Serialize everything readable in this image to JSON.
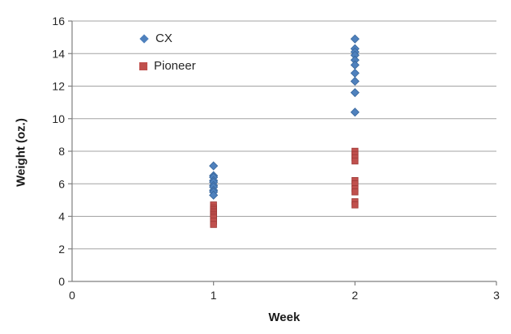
{
  "chart_data": {
    "type": "scatter",
    "title": "",
    "xlabel": "Week",
    "ylabel": "Weight (oz.)",
    "xlim": [
      0,
      3
    ],
    "ylim": [
      0,
      16
    ],
    "x_ticks": [
      0,
      1,
      2,
      3
    ],
    "y_ticks": [
      0,
      2,
      4,
      6,
      8,
      10,
      12,
      14,
      16
    ],
    "grid": "horizontal-lines-only",
    "legend_position": "inside-top-left",
    "legend": [
      {
        "label": "CX",
        "marker": "diamond"
      },
      {
        "label": "Pioneer",
        "marker": "square"
      }
    ],
    "series": [
      {
        "name": "CX",
        "marker": "diamond",
        "color": "#4F81BD",
        "edge_color": "#38669B",
        "points": [
          {
            "x": 1,
            "y": 7.1
          },
          {
            "x": 1,
            "y": 6.5
          },
          {
            "x": 1,
            "y": 6.4
          },
          {
            "x": 1,
            "y": 6.2
          },
          {
            "x": 1,
            "y": 6.1
          },
          {
            "x": 1,
            "y": 5.9
          },
          {
            "x": 1,
            "y": 5.8
          },
          {
            "x": 1,
            "y": 5.6
          },
          {
            "x": 1,
            "y": 5.5
          },
          {
            "x": 1,
            "y": 5.3
          },
          {
            "x": 2,
            "y": 14.9
          },
          {
            "x": 2,
            "y": 14.3
          },
          {
            "x": 2,
            "y": 14.1
          },
          {
            "x": 2,
            "y": 13.9
          },
          {
            "x": 2,
            "y": 13.6
          },
          {
            "x": 2,
            "y": 13.3
          },
          {
            "x": 2,
            "y": 12.8
          },
          {
            "x": 2,
            "y": 12.3
          },
          {
            "x": 2,
            "y": 11.6
          },
          {
            "x": 2,
            "y": 10.4
          }
        ]
      },
      {
        "name": "Pioneer",
        "marker": "square",
        "color": "#C0504D",
        "edge_color": "#9E3B38",
        "points": [
          {
            "x": 1,
            "y": 4.7
          },
          {
            "x": 1,
            "y": 4.5
          },
          {
            "x": 1,
            "y": 4.4
          },
          {
            "x": 1,
            "y": 4.3
          },
          {
            "x": 1,
            "y": 4.2
          },
          {
            "x": 1,
            "y": 4.1
          },
          {
            "x": 1,
            "y": 4.0
          },
          {
            "x": 1,
            "y": 3.9
          },
          {
            "x": 1,
            "y": 3.7
          },
          {
            "x": 1,
            "y": 3.5
          },
          {
            "x": 2,
            "y": 8.0
          },
          {
            "x": 2,
            "y": 7.8
          },
          {
            "x": 2,
            "y": 7.6
          },
          {
            "x": 2,
            "y": 7.4
          },
          {
            "x": 2,
            "y": 6.2
          },
          {
            "x": 2,
            "y": 6.0
          },
          {
            "x": 2,
            "y": 5.7
          },
          {
            "x": 2,
            "y": 5.5
          },
          {
            "x": 2,
            "y": 4.9
          },
          {
            "x": 2,
            "y": 4.7
          }
        ]
      }
    ],
    "colors": {
      "background": "#FFFFFF",
      "gridline": "#A3A3A3",
      "axis": "#7F7F7F",
      "tick_label": "#262626",
      "axis_title": "#1A1A1A"
    }
  }
}
